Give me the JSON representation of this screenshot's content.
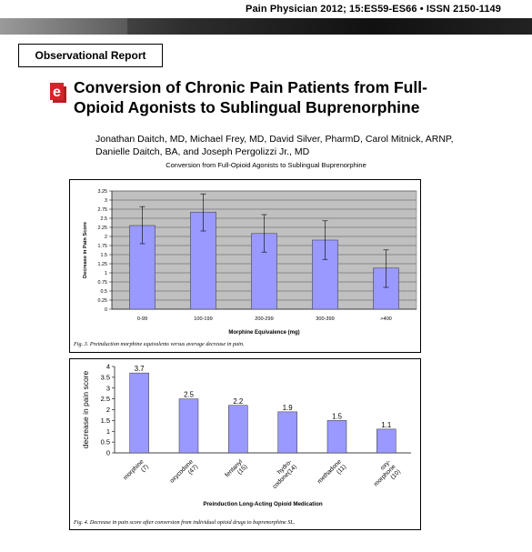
{
  "header": {
    "journal_line": "Pain Physician 2012; 15:ES59-ES66 • ISSN 2150-1149"
  },
  "article": {
    "type_label": "Observational Report",
    "logo_letter": "e",
    "title_lines": [
      "Conversion of Chronic Pain Patients from Full-",
      "Opioid Agonists to Sublingual Buprenorphine"
    ],
    "author_lines": [
      "Jonathan Daitch, MD, Michael Frey, MD, David Silver, PharmD, Carol Mitnick, ARNP,",
      "Danielle Daitch, BA, and Joseph Pergolizzi Jr., MD"
    ],
    "figure_group_caption": "Conversion from Full-Opioid Agonists to Sublingual Buprenorphine"
  },
  "chart_data": [
    {
      "type": "bar",
      "categories": [
        "0-99",
        "100-199",
        "200-299",
        "300-399",
        ">400"
      ],
      "values": [
        2.3,
        2.67,
        2.08,
        1.9,
        1.13
      ],
      "error_low": [
        1.8,
        2.15,
        1.57,
        1.37,
        0.6
      ],
      "error_high": [
        2.82,
        3.17,
        2.6,
        2.43,
        1.63
      ],
      "ticks": [
        "0",
        "0.25",
        "0.5",
        "0.75",
        "1",
        "1.25",
        "1.5",
        "1.75",
        "2",
        "2.25",
        "2.5",
        "2.75",
        "3",
        "3.25"
      ],
      "ylim": [
        0,
        3.25
      ],
      "xlabel": "Morphine Equivalence (mg)",
      "ylabel": "Decrease in Pain Score",
      "bar_color": "#9999ff",
      "plot_background": "#c0c0c0",
      "grid": true,
      "caption": "Fig. 3. Preinduction morphine equivalents versus average decrease in pain."
    },
    {
      "type": "bar",
      "categories": [
        [
          "morphine",
          "(7)"
        ],
        [
          "oxycodone",
          "(47)"
        ],
        [
          "fentanyl",
          "(15)"
        ],
        [
          "hydro-",
          "codone(14)"
        ],
        [
          "methadone",
          "(11)"
        ],
        [
          "oxy-",
          "morphone",
          "(10)"
        ]
      ],
      "values": [
        3.7,
        2.5,
        2.2,
        1.9,
        1.5,
        1.1
      ],
      "data_labels": [
        "3.7",
        "2.5",
        "2.2",
        "1.9",
        "1.5",
        "1.1"
      ],
      "ticks": [
        "0",
        "0.5",
        "1",
        "1.5",
        "2",
        "2.5",
        "3",
        "3.5",
        "4"
      ],
      "ylim": [
        0,
        4
      ],
      "xlabel": "Preinduction Long-Acting Opioid Medication",
      "ylabel": "decrease in pain score",
      "bar_color": "#9999ff",
      "grid": false,
      "caption": "Fig. 4. Decrease in pain score after conversion from individual opioid drugs to buprenorphine SL."
    }
  ],
  "colors": {
    "accent_red": "#d8232a"
  }
}
